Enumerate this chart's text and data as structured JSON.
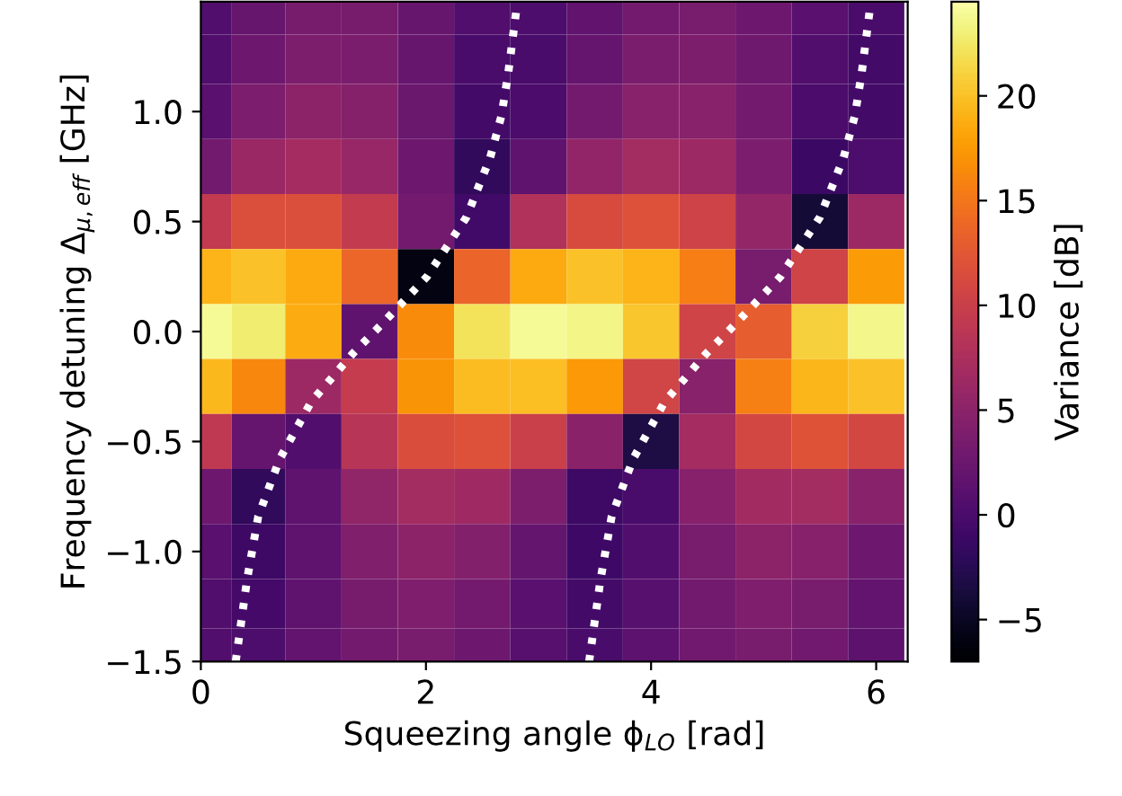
{
  "chart_data": {
    "type": "heatmap",
    "xlabel": "Squeezing angle ϕ$_{LO}$ [rad]",
    "ylabel": "Frequency detuning Δ$_{μ,eff}$ [GHz]",
    "clabel": "Variance [dB]",
    "x": [
      0.05,
      0.5,
      1,
      1.5,
      2,
      2.5,
      3,
      3.5,
      4,
      4.5,
      5,
      5.5,
      6
    ],
    "y": [
      1.45,
      1.25,
      1.0,
      0.75,
      0.5,
      0.25,
      0,
      -0.25,
      -0.5,
      -0.75,
      -1.0,
      -1.25,
      -1.45
    ],
    "cells": [
      [
        0.5,
        2.2,
        3.4,
        3.4,
        2.2,
        0.5,
        0.2,
        1.7,
        3.1,
        3.5,
        2.6,
        1.0,
        0.0
      ],
      [
        0.5,
        2.7,
        3.9,
        3.7,
        2.2,
        0.0,
        -0.1,
        2.1,
        3.7,
        3.9,
        2.8,
        0.6,
        -0.5
      ],
      [
        1.0,
        3.8,
        5.0,
        4.5,
        2.4,
        -0.6,
        0.1,
        3.1,
        4.8,
        4.8,
        3.1,
        0.1,
        -0.6
      ],
      [
        3.0,
        6.1,
        7.0,
        5.9,
        2.6,
        -1.9,
        1.6,
        5.5,
        6.9,
        6.4,
        3.8,
        -1.1,
        0.2
      ],
      [
        9.3,
        11.7,
        11.7,
        9.4,
        3.1,
        -0.7,
        8.0,
        11.3,
        11.9,
        10.4,
        5.6,
        -4.0,
        6.3
      ],
      [
        19.2,
        20.0,
        18.5,
        13.7,
        -6.0,
        13.6,
        18.5,
        20.0,
        19.2,
        15.6,
        3.5,
        10.5,
        17.6
      ],
      [
        24.0,
        22.9,
        18.7,
        1.6,
        16.4,
        22.1,
        23.9,
        23.4,
        20.3,
        10.5,
        13.0,
        21.0,
        23.6
      ],
      [
        19.4,
        16.2,
        6.3,
        9.5,
        17.1,
        19.7,
        19.8,
        17.4,
        10.6,
        4.7,
        15.7,
        19.3,
        20.0
      ],
      [
        9.0,
        2.0,
        0.5,
        8.5,
        11.5,
        11.9,
        10.1,
        4.9,
        -3.2,
        7.0,
        10.9,
        12.0,
        10.9
      ],
      [
        2.7,
        -1.9,
        1.6,
        5.4,
        6.9,
        6.5,
        3.9,
        -1.0,
        0.0,
        4.6,
        6.7,
        6.8,
        4.8
      ],
      [
        1.0,
        -1.0,
        1.5,
        4.1,
        5.0,
        4.3,
        1.9,
        -0.9,
        0.6,
        3.5,
        5.0,
        4.6,
        2.7
      ],
      [
        0.5,
        -0.4,
        1.6,
        3.4,
        4.0,
        3.2,
        1.1,
        -0.5,
        0.9,
        3.0,
        4.0,
        3.5,
        1.8
      ],
      [
        0.5,
        0.2,
        1.8,
        3.2,
        3.5,
        2.6,
        0.9,
        0.0,
        1.3,
        2.9,
        3.5,
        2.9,
        1.4
      ]
    ],
    "clim": [
      -7,
      24.5
    ],
    "cticks": [
      -5,
      0,
      5,
      10,
      15,
      20
    ],
    "xlim": [
      0,
      6.28
    ],
    "ylim": [
      -1.5,
      1.5
    ],
    "xticks": [
      0,
      2,
      4,
      6
    ],
    "yticks": [
      -1.5,
      {
        "value": -1.0,
        "label": "−1.0"
      },
      -0.5,
      {
        "value": 0,
        "label": "0.0"
      },
      0.5,
      {
        "value": 1,
        "label": "1.0"
      }
    ],
    "series": [
      {
        "type": "line",
        "color": "#ffffff",
        "line_style": "dotted",
        "x": [
          0.31,
          0.41,
          0.51,
          0.7,
          0.98,
          1.35,
          1.62,
          2.01,
          2.36,
          2.57,
          2.67,
          2.73,
          2.8
        ],
        "values": [
          -1.5,
          -1.13,
          -0.84,
          -0.58,
          -0.32,
          -0.1,
          0.04,
          0.25,
          0.52,
          0.79,
          0.98,
          1.17,
          1.45
        ]
      },
      {
        "type": "line",
        "color": "#ffffff",
        "line_style": "dotted",
        "x": [
          3.45,
          3.55,
          3.65,
          3.84,
          4.12,
          4.49,
          4.76,
          5.15,
          5.5,
          5.71,
          5.81,
          5.87,
          5.94
        ],
        "values": [
          -1.5,
          -1.13,
          -0.84,
          -0.58,
          -0.32,
          -0.1,
          0.04,
          0.25,
          0.52,
          0.79,
          0.98,
          1.17,
          1.45
        ]
      }
    ],
    "grid": false,
    "legend": false
  }
}
